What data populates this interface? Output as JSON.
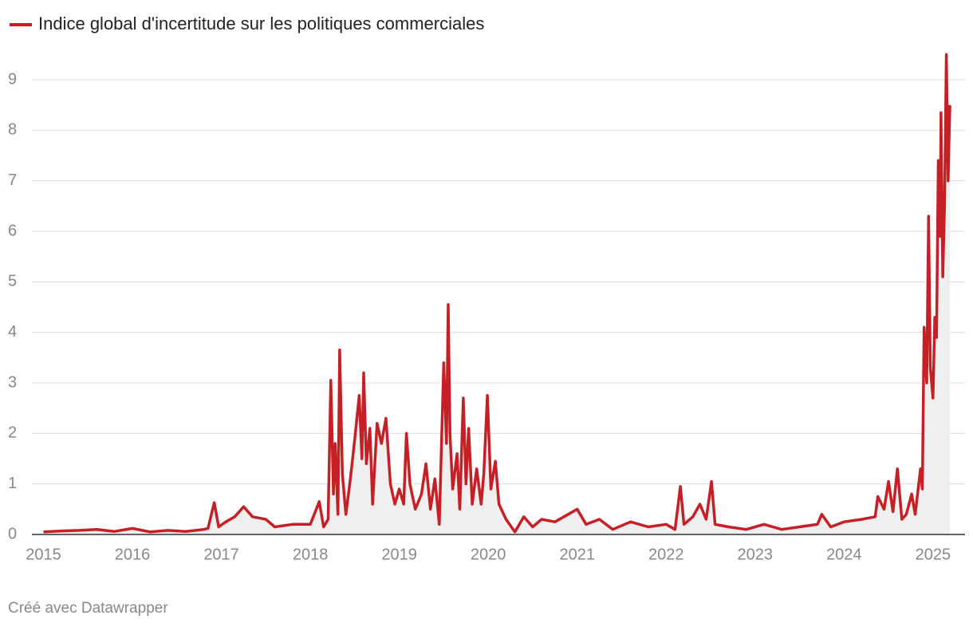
{
  "chart_data": {
    "type": "line",
    "series": [
      {
        "name": "Indice global d'incertitude sur les politiques commerciales",
        "color": "#c62026",
        "area_color": "#efefef",
        "x": [
          2015.0,
          2015.2,
          2015.4,
          2015.6,
          2015.8,
          2016.0,
          2016.2,
          2016.4,
          2016.6,
          2016.8,
          2016.85,
          2016.92,
          2016.97,
          2017.05,
          2017.15,
          2017.25,
          2017.35,
          2017.5,
          2017.6,
          2017.8,
          2018.0,
          2018.1,
          2018.15,
          2018.2,
          2018.23,
          2018.26,
          2018.28,
          2018.31,
          2018.33,
          2018.36,
          2018.4,
          2018.45,
          2018.5,
          2018.55,
          2018.58,
          2018.6,
          2018.63,
          2018.67,
          2018.7,
          2018.75,
          2018.8,
          2018.85,
          2018.9,
          2018.95,
          2019.0,
          2019.05,
          2019.08,
          2019.12,
          2019.18,
          2019.25,
          2019.3,
          2019.35,
          2019.4,
          2019.45,
          2019.5,
          2019.53,
          2019.55,
          2019.57,
          2019.6,
          2019.65,
          2019.68,
          2019.72,
          2019.75,
          2019.78,
          2019.82,
          2019.87,
          2019.92,
          2019.95,
          2019.99,
          2020.03,
          2020.08,
          2020.12,
          2020.2,
          2020.3,
          2020.4,
          2020.5,
          2020.6,
          2020.75,
          2020.9,
          2021.0,
          2021.1,
          2021.25,
          2021.4,
          2021.6,
          2021.8,
          2022.0,
          2022.1,
          2022.16,
          2022.2,
          2022.3,
          2022.38,
          2022.45,
          2022.51,
          2022.55,
          2022.7,
          2022.9,
          2023.1,
          2023.3,
          2023.5,
          2023.7,
          2023.75,
          2023.85,
          2024.0,
          2024.2,
          2024.35,
          2024.38,
          2024.45,
          2024.5,
          2024.55,
          2024.6,
          2024.65,
          2024.7,
          2024.76,
          2024.8,
          2024.86,
          2024.88,
          2024.9,
          2024.93,
          2024.95,
          2024.97,
          2025.0,
          2025.02,
          2025.04,
          2025.06,
          2025.08,
          2025.09,
          2025.11,
          2025.13,
          2025.15,
          2025.17,
          2025.19
        ],
        "values": [
          0.05,
          0.07,
          0.08,
          0.1,
          0.06,
          0.12,
          0.05,
          0.08,
          0.06,
          0.1,
          0.12,
          0.63,
          0.15,
          0.25,
          0.35,
          0.55,
          0.35,
          0.3,
          0.15,
          0.2,
          0.2,
          0.65,
          0.15,
          0.3,
          3.05,
          0.8,
          1.8,
          0.4,
          3.65,
          1.2,
          0.4,
          1.1,
          1.9,
          2.75,
          1.5,
          3.2,
          1.4,
          2.1,
          0.6,
          2.2,
          1.8,
          2.3,
          1.0,
          0.6,
          0.9,
          0.6,
          2.0,
          1.0,
          0.5,
          0.8,
          1.4,
          0.5,
          1.1,
          0.2,
          3.4,
          1.8,
          4.55,
          2.0,
          0.9,
          1.6,
          0.5,
          2.7,
          1.0,
          2.1,
          0.6,
          1.3,
          0.6,
          1.2,
          2.75,
          0.9,
          1.45,
          0.6,
          0.3,
          0.05,
          0.35,
          0.15,
          0.3,
          0.25,
          0.4,
          0.5,
          0.2,
          0.3,
          0.1,
          0.25,
          0.15,
          0.2,
          0.1,
          0.95,
          0.2,
          0.35,
          0.6,
          0.3,
          1.05,
          0.2,
          0.15,
          0.1,
          0.2,
          0.1,
          0.15,
          0.2,
          0.4,
          0.15,
          0.25,
          0.3,
          0.35,
          0.75,
          0.5,
          1.05,
          0.45,
          1.3,
          0.3,
          0.4,
          0.8,
          0.4,
          1.3,
          0.9,
          4.1,
          3.0,
          6.3,
          3.3,
          2.7,
          4.3,
          3.9,
          7.4,
          5.9,
          8.35,
          5.1,
          6.5,
          9.5,
          7.0,
          8.5
        ]
      }
    ],
    "xlim": [
      2014.87,
      2025.36
    ],
    "xticks": [
      2015,
      2016,
      2017,
      2018,
      2019,
      2020,
      2021,
      2022,
      2023,
      2024,
      2025
    ],
    "ylim": [
      0,
      9.6
    ],
    "yticks": [
      0,
      1,
      2,
      3,
      4,
      5,
      6,
      7,
      8,
      9
    ],
    "grid": true,
    "credit": "Créé avec Datawrapper"
  }
}
